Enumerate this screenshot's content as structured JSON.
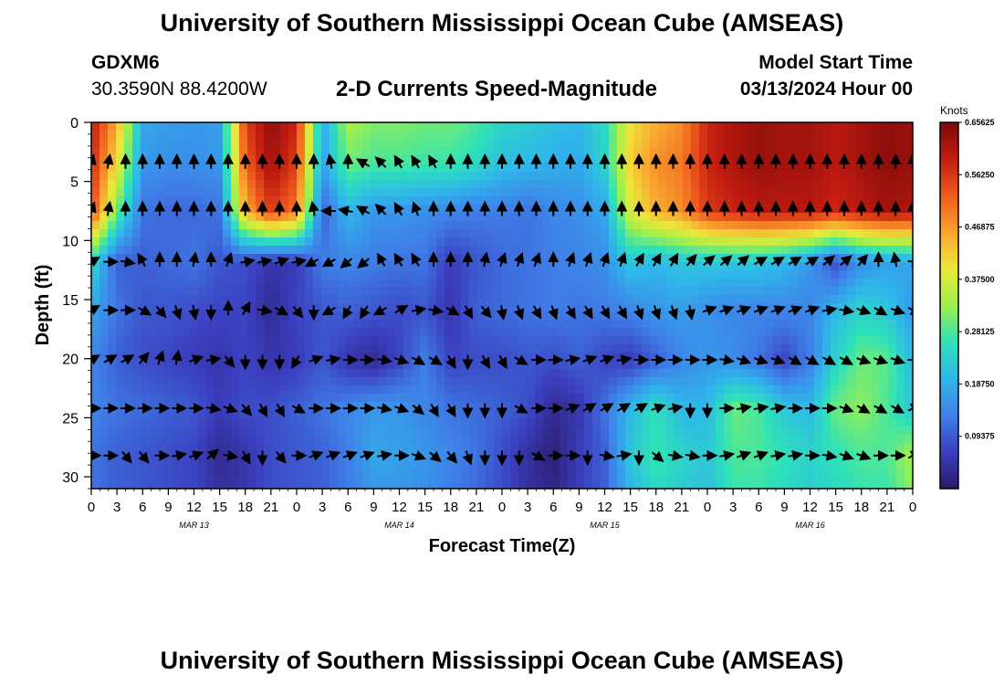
{
  "header": {
    "title": "University of Southern Mississippi Ocean Cube (AMSEAS)",
    "station": "GDXM6",
    "coords": "30.3590N  88.4200W",
    "chart_title": "2-D Currents Speed-Magnitude",
    "model_start_label": "Model Start Time",
    "model_start_value": "03/13/2024 Hour 00"
  },
  "footer": {
    "title": "University of Southern Mississippi Ocean Cube (AMSEAS)"
  },
  "colors": {
    "scale": [
      "#2a1a6b",
      "#3b3fbf",
      "#3f7fe8",
      "#2fb6ea",
      "#2ee2b8",
      "#9ef04c",
      "#ece83a",
      "#f9a52f",
      "#ef5b1c",
      "#c21c10",
      "#7c0a0a"
    ]
  },
  "chart_data": {
    "type": "heatmap",
    "title": "2-D Currents Speed-Magnitude",
    "xlabel": "Forecast Time(Z)",
    "ylabel": "Depth (ft)",
    "x_ticks": [
      "0",
      "3",
      "6",
      "9",
      "12",
      "15",
      "18",
      "21",
      "0",
      "3",
      "6",
      "9",
      "12",
      "15",
      "18",
      "21",
      "0",
      "3",
      "6",
      "9",
      "12",
      "15",
      "18",
      "21",
      "0",
      "3",
      "6",
      "9",
      "12",
      "15",
      "18",
      "21",
      "0"
    ],
    "xlim": [
      0,
      96
    ],
    "day_labels": [
      {
        "label": "MAR 13",
        "hour": 12
      },
      {
        "label": "MAR 14",
        "hour": 36
      },
      {
        "label": "MAR 15",
        "hour": 60
      },
      {
        "label": "MAR 16",
        "hour": 84
      }
    ],
    "y_ticks": [
      0,
      5,
      10,
      15,
      20,
      25,
      30
    ],
    "ylim": [
      0,
      31
    ],
    "colorbar": {
      "unit": "Knots",
      "ticks": [
        "0.65625",
        "0.56250",
        "0.46875",
        "0.37500",
        "0.28125",
        "0.18750",
        "0.09375"
      ],
      "tick_values": [
        0.65625,
        0.5625,
        0.46875,
        0.375,
        0.28125,
        0.1875,
        0.09375
      ],
      "range": [
        0,
        0.65625
      ]
    },
    "depths": [
      0,
      3.5,
      7.5,
      11.8,
      15.9,
      20.1,
      24.2,
      28.2,
      31
    ],
    "speed_times": [
      0,
      3,
      6,
      9,
      12,
      15,
      18,
      21,
      24,
      27,
      30,
      33,
      36,
      39,
      42,
      45,
      48,
      51,
      54,
      57,
      60,
      63,
      66,
      69,
      72,
      75,
      78,
      81,
      84,
      87,
      90,
      93,
      96
    ],
    "speed": [
      [
        0.6,
        0.45,
        0.18,
        0.17,
        0.16,
        0.17,
        0.55,
        0.64,
        0.58,
        0.18,
        0.34,
        0.31,
        0.31,
        0.3,
        0.3,
        0.28,
        0.24,
        0.23,
        0.21,
        0.2,
        0.25,
        0.4,
        0.45,
        0.48,
        0.58,
        0.61,
        0.63,
        0.62,
        0.62,
        0.6,
        0.62,
        0.64,
        0.63
      ],
      [
        0.58,
        0.4,
        0.16,
        0.15,
        0.15,
        0.16,
        0.52,
        0.62,
        0.55,
        0.17,
        0.3,
        0.28,
        0.28,
        0.27,
        0.27,
        0.25,
        0.21,
        0.2,
        0.19,
        0.18,
        0.24,
        0.42,
        0.48,
        0.5,
        0.58,
        0.61,
        0.63,
        0.62,
        0.62,
        0.6,
        0.62,
        0.64,
        0.63
      ],
      [
        0.55,
        0.3,
        0.12,
        0.11,
        0.11,
        0.12,
        0.45,
        0.56,
        0.5,
        0.1,
        0.2,
        0.16,
        0.16,
        0.15,
        0.14,
        0.13,
        0.13,
        0.12,
        0.14,
        0.15,
        0.18,
        0.38,
        0.45,
        0.48,
        0.56,
        0.58,
        0.6,
        0.6,
        0.6,
        0.58,
        0.6,
        0.62,
        0.61
      ],
      [
        0.25,
        0.1,
        0.1,
        0.11,
        0.12,
        0.09,
        0.08,
        0.05,
        0.06,
        0.13,
        0.14,
        0.13,
        0.12,
        0.12,
        0.06,
        0.09,
        0.11,
        0.12,
        0.13,
        0.14,
        0.15,
        0.22,
        0.2,
        0.22,
        0.22,
        0.22,
        0.22,
        0.2,
        0.16,
        0.08,
        0.15,
        0.17,
        0.18
      ],
      [
        0.18,
        0.12,
        0.09,
        0.09,
        0.08,
        0.07,
        0.07,
        0.03,
        0.07,
        0.09,
        0.1,
        0.09,
        0.08,
        0.09,
        0.05,
        0.1,
        0.11,
        0.12,
        0.13,
        0.12,
        0.13,
        0.14,
        0.16,
        0.17,
        0.15,
        0.14,
        0.14,
        0.14,
        0.14,
        0.2,
        0.24,
        0.22,
        0.16
      ],
      [
        0.14,
        0.1,
        0.08,
        0.07,
        0.06,
        0.05,
        0.07,
        0.05,
        0.06,
        0.09,
        0.05,
        0.03,
        0.07,
        0.13,
        0.07,
        0.08,
        0.08,
        0.09,
        0.08,
        0.1,
        0.07,
        0.06,
        0.1,
        0.14,
        0.16,
        0.15,
        0.12,
        0.07,
        0.13,
        0.24,
        0.3,
        0.29,
        0.2
      ],
      [
        0.14,
        0.12,
        0.11,
        0.1,
        0.09,
        0.06,
        0.08,
        0.08,
        0.1,
        0.12,
        0.14,
        0.16,
        0.16,
        0.14,
        0.12,
        0.11,
        0.1,
        0.08,
        0.03,
        0.05,
        0.12,
        0.2,
        0.26,
        0.2,
        0.2,
        0.3,
        0.28,
        0.22,
        0.2,
        0.3,
        0.32,
        0.28,
        0.22
      ],
      [
        0.12,
        0.1,
        0.09,
        0.08,
        0.07,
        0.03,
        0.05,
        0.08,
        0.09,
        0.1,
        0.13,
        0.18,
        0.17,
        0.16,
        0.14,
        0.12,
        0.08,
        0.04,
        0.01,
        0.06,
        0.1,
        0.22,
        0.27,
        0.24,
        0.22,
        0.28,
        0.28,
        0.26,
        0.24,
        0.26,
        0.28,
        0.28,
        0.34
      ],
      [
        0.12,
        0.1,
        0.09,
        0.08,
        0.07,
        0.04,
        0.05,
        0.08,
        0.09,
        0.1,
        0.13,
        0.16,
        0.16,
        0.15,
        0.13,
        0.11,
        0.08,
        0.04,
        0.02,
        0.06,
        0.1,
        0.2,
        0.25,
        0.23,
        0.21,
        0.27,
        0.27,
        0.25,
        0.23,
        0.25,
        0.27,
        0.27,
        0.32
      ]
    ],
    "arrow_depths": [
      3.5,
      7.5,
      11.8,
      15.9,
      20.1,
      24.2,
      28.2
    ],
    "arrow_times": [
      0,
      2,
      4,
      6,
      8,
      10,
      12,
      14,
      16,
      18,
      20,
      22,
      24,
      26,
      28,
      30,
      32,
      34,
      36,
      38,
      40,
      42,
      44,
      46,
      48,
      50,
      52,
      54,
      56,
      58,
      60,
      62,
      64,
      66,
      68,
      70,
      72,
      74,
      76,
      78,
      80,
      82,
      84,
      86,
      88,
      90,
      92,
      94,
      96
    ],
    "arrow_directions_deg": [
      [
        15,
        10,
        0,
        0,
        0,
        0,
        0,
        0,
        0,
        0,
        0,
        0,
        0,
        0,
        -10,
        0,
        -60,
        -45,
        -30,
        -30,
        -30,
        0,
        0,
        0,
        0,
        0,
        0,
        0,
        0,
        0,
        0,
        0,
        0,
        0,
        0,
        0,
        0,
        0,
        0,
        0,
        0,
        0,
        0,
        0,
        0,
        0,
        0,
        0,
        0
      ],
      [
        20,
        10,
        0,
        0,
        0,
        0,
        0,
        0,
        0,
        0,
        0,
        0,
        0,
        -10,
        -90,
        -80,
        -60,
        -45,
        -30,
        -20,
        0,
        0,
        0,
        0,
        0,
        0,
        0,
        0,
        0,
        0,
        0,
        0,
        0,
        0,
        0,
        0,
        0,
        0,
        0,
        0,
        0,
        0,
        0,
        0,
        0,
        0,
        0,
        0,
        0
      ],
      [
        60,
        90,
        100,
        -30,
        0,
        0,
        10,
        0,
        20,
        80,
        80,
        70,
        80,
        -120,
        -120,
        -130,
        -130,
        -30,
        -30,
        -30,
        0,
        0,
        0,
        10,
        20,
        20,
        20,
        0,
        20,
        20,
        20,
        20,
        30,
        30,
        30,
        40,
        50,
        50,
        50,
        60,
        60,
        60,
        60,
        50,
        50,
        40,
        0,
        -10,
        100
      ],
      [
        60,
        90,
        90,
        120,
        140,
        160,
        170,
        180,
        0,
        30,
        100,
        120,
        140,
        180,
        -120,
        -150,
        -150,
        -120,
        60,
        80,
        100,
        120,
        150,
        140,
        170,
        160,
        150,
        160,
        150,
        150,
        150,
        150,
        160,
        160,
        160,
        170,
        70,
        70,
        70,
        70,
        70,
        70,
        70,
        80,
        100,
        110,
        120,
        110,
        120
      ],
      [
        60,
        60,
        60,
        40,
        20,
        10,
        70,
        80,
        140,
        180,
        180,
        180,
        -150,
        70,
        80,
        90,
        90,
        100,
        110,
        120,
        120,
        150,
        180,
        150,
        150,
        120,
        90,
        90,
        80,
        70,
        70,
        80,
        90,
        90,
        90,
        90,
        90,
        100,
        110,
        110,
        110,
        120,
        120,
        120,
        120,
        110,
        110,
        110,
        90
      ],
      [
        90,
        90,
        90,
        90,
        90,
        90,
        90,
        100,
        110,
        140,
        150,
        150,
        120,
        90,
        90,
        90,
        90,
        100,
        110,
        130,
        150,
        150,
        180,
        180,
        180,
        120,
        90,
        90,
        70,
        60,
        60,
        60,
        60,
        70,
        80,
        180,
        180,
        90,
        80,
        80,
        80,
        90,
        90,
        90,
        110,
        120,
        120,
        120,
        60
      ],
      [
        90,
        90,
        140,
        140,
        90,
        80,
        70,
        50,
        100,
        150,
        180,
        140,
        90,
        70,
        70,
        70,
        70,
        80,
        90,
        110,
        130,
        140,
        160,
        180,
        180,
        180,
        120,
        90,
        90,
        180,
        100,
        80,
        180,
        130,
        100,
        100,
        90,
        80,
        70,
        70,
        80,
        80,
        90,
        100,
        110,
        110,
        90,
        90,
        60
      ]
    ]
  }
}
